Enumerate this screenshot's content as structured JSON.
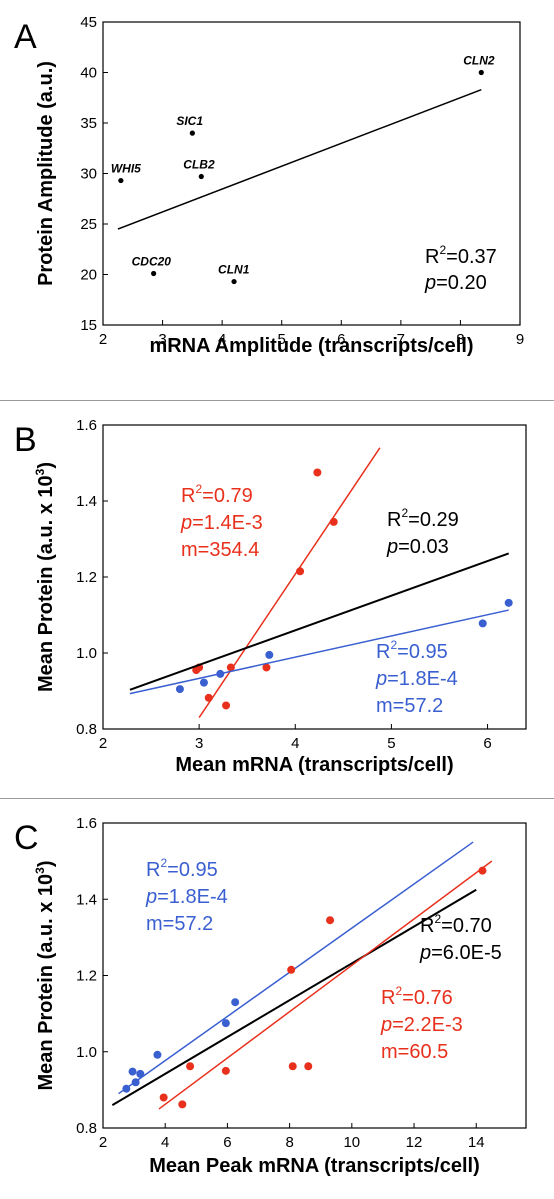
{
  "chart_data": [
    {
      "panel": "A",
      "type": "scatter",
      "xlabel": "mRNA Amplitude (transcripts/cell)",
      "ylabel": "Protein Amplitude (a.u.)",
      "xlim": [
        2,
        9
      ],
      "ylim": [
        15,
        45
      ],
      "xticks": [
        "2",
        "3",
        "4",
        "5",
        "6",
        "7",
        "8",
        "9"
      ],
      "yticks": [
        "15",
        "20",
        "25",
        "30",
        "35",
        "40",
        "45"
      ],
      "grid": false,
      "series": [
        {
          "color": "#000000",
          "points": [
            {
              "label": "CLN2",
              "x": 8.35,
              "y": 40.0
            },
            {
              "label": "SIC1",
              "x": 3.5,
              "y": 34.0
            },
            {
              "label": "WHI5",
              "x": 2.3,
              "y": 29.3
            },
            {
              "label": "CLB2",
              "x": 3.65,
              "y": 29.7
            },
            {
              "label": "CDC20",
              "x": 2.85,
              "y": 20.1
            },
            {
              "label": "CLN1",
              "x": 4.2,
              "y": 19.3
            }
          ],
          "fit": {
            "x1": 2.25,
            "y1": 24.5,
            "x2": 8.35,
            "y2": 38.3
          }
        }
      ],
      "annotations": [
        {
          "color": "#000000",
          "lines": [
            {
              "label": "R",
              "sup": "2",
              "text": "=0.37"
            },
            {
              "italic": "p",
              "text": "=0.20"
            }
          ]
        }
      ]
    },
    {
      "panel": "B",
      "type": "scatter",
      "xlabel": "Mean mRNA (transcripts/cell)",
      "ylabel_main": "Mean Protein (a.u. x 10",
      "ylabel_sup": "3",
      "ylabel_end": ")",
      "xlim": [
        2,
        6.4
      ],
      "ylim": [
        0.8,
        1.6
      ],
      "xticks": [
        "2",
        "3",
        "4",
        "5",
        "6"
      ],
      "yticks": [
        "0.8",
        "1.0",
        "1.2",
        "1.4",
        "1.6"
      ],
      "grid": false,
      "series": [
        {
          "color": "#e8301c",
          "points": [
            {
              "x": 2.97,
              "y": 0.955
            },
            {
              "x": 3.0,
              "y": 0.962
            },
            {
              "x": 3.1,
              "y": 0.882
            },
            {
              "x": 3.28,
              "y": 0.862
            },
            {
              "x": 3.33,
              "y": 0.962
            },
            {
              "x": 3.7,
              "y": 0.962
            },
            {
              "x": 4.05,
              "y": 1.215
            },
            {
              "x": 4.23,
              "y": 1.475
            },
            {
              "x": 4.4,
              "y": 1.345
            }
          ],
          "fit": {
            "x1": 3.0,
            "y1": 0.83,
            "x2": 4.88,
            "y2": 1.54
          }
        },
        {
          "color": "#000000",
          "points": [],
          "fit": {
            "x1": 2.28,
            "y1": 0.903,
            "x2": 6.22,
            "y2": 1.262
          }
        },
        {
          "color": "#3a5fd0",
          "points": [
            {
              "x": 2.8,
              "y": 0.905
            },
            {
              "x": 3.05,
              "y": 0.922
            },
            {
              "x": 3.22,
              "y": 0.945
            },
            {
              "x": 3.73,
              "y": 0.995
            },
            {
              "x": 5.95,
              "y": 1.078
            },
            {
              "x": 6.22,
              "y": 1.132
            }
          ],
          "fit": {
            "x1": 2.28,
            "y1": 0.893,
            "x2": 6.22,
            "y2": 1.113
          }
        }
      ],
      "annotations": [
        {
          "color": "#e8301c",
          "lines": [
            {
              "label": "R",
              "sup": "2",
              "text": "=0.79"
            },
            {
              "italic": "p",
              "text": "=1.4E-3"
            },
            {
              "text": "m=354.4"
            }
          ]
        },
        {
          "color": "#000000",
          "lines": [
            {
              "label": "R",
              "sup": "2",
              "text": "=0.29"
            },
            {
              "italic": "p",
              "text": "=0.03"
            }
          ]
        },
        {
          "color": "#3a5fd0",
          "lines": [
            {
              "label": "R",
              "sup": "2",
              "text": "=0.95"
            },
            {
              "italic": "p",
              "text": "=1.8E-4"
            },
            {
              "text": "m=57.2"
            }
          ]
        }
      ]
    },
    {
      "panel": "C",
      "type": "scatter",
      "xlabel": "Mean Peak mRNA (transcripts/cell)",
      "ylabel_main": "Mean Protein (a.u. x 10",
      "ylabel_sup": "3",
      "ylabel_end": ")",
      "xlim": [
        2,
        15.6
      ],
      "ylim": [
        0.8,
        1.6
      ],
      "xticks": [
        "2",
        "4",
        "6",
        "8",
        "10",
        "12",
        "14"
      ],
      "yticks": [
        "0.8",
        "1.0",
        "1.2",
        "1.4",
        "1.6"
      ],
      "grid": false,
      "series": [
        {
          "color": "#3a5fd0",
          "points": [
            {
              "x": 2.75,
              "y": 0.903
            },
            {
              "x": 2.95,
              "y": 0.948
            },
            {
              "x": 3.05,
              "y": 0.92
            },
            {
              "x": 3.2,
              "y": 0.942
            },
            {
              "x": 3.75,
              "y": 0.992
            },
            {
              "x": 5.95,
              "y": 1.075
            },
            {
              "x": 6.25,
              "y": 1.13
            }
          ],
          "fit": {
            "x1": 2.5,
            "y1": 0.89,
            "x2": 13.9,
            "y2": 1.55
          }
        },
        {
          "color": "#000000",
          "points": [],
          "fit": {
            "x1": 2.3,
            "y1": 0.86,
            "x2": 14.0,
            "y2": 1.425
          }
        },
        {
          "color": "#e8301c",
          "points": [
            {
              "x": 3.95,
              "y": 0.88
            },
            {
              "x": 4.55,
              "y": 0.862
            },
            {
              "x": 4.8,
              "y": 0.962
            },
            {
              "x": 5.95,
              "y": 0.95
            },
            {
              "x": 8.05,
              "y": 1.215
            },
            {
              "x": 8.1,
              "y": 0.962
            },
            {
              "x": 8.6,
              "y": 0.962
            },
            {
              "x": 9.3,
              "y": 1.345
            },
            {
              "x": 14.2,
              "y": 1.475
            }
          ],
          "fit": {
            "x1": 3.8,
            "y1": 0.85,
            "x2": 14.5,
            "y2": 1.5
          }
        }
      ],
      "annotations": [
        {
          "color": "#3a5fd0",
          "lines": [
            {
              "label": "R",
              "sup": "2",
              "text": "=0.95"
            },
            {
              "italic": "p",
              "text": "=1.8E-4"
            },
            {
              "text": "m=57.2"
            }
          ]
        },
        {
          "color": "#000000",
          "lines": [
            {
              "label": "R",
              "sup": "2",
              "text": "=0.70"
            },
            {
              "italic": "p",
              "text": "=6.0E-5"
            }
          ]
        },
        {
          "color": "#e8301c",
          "lines": [
            {
              "label": "R",
              "sup": "2",
              "text": "=0.76"
            },
            {
              "italic": "p",
              "text": "=2.2E-3"
            },
            {
              "text": "m=60.5"
            }
          ]
        }
      ]
    }
  ]
}
